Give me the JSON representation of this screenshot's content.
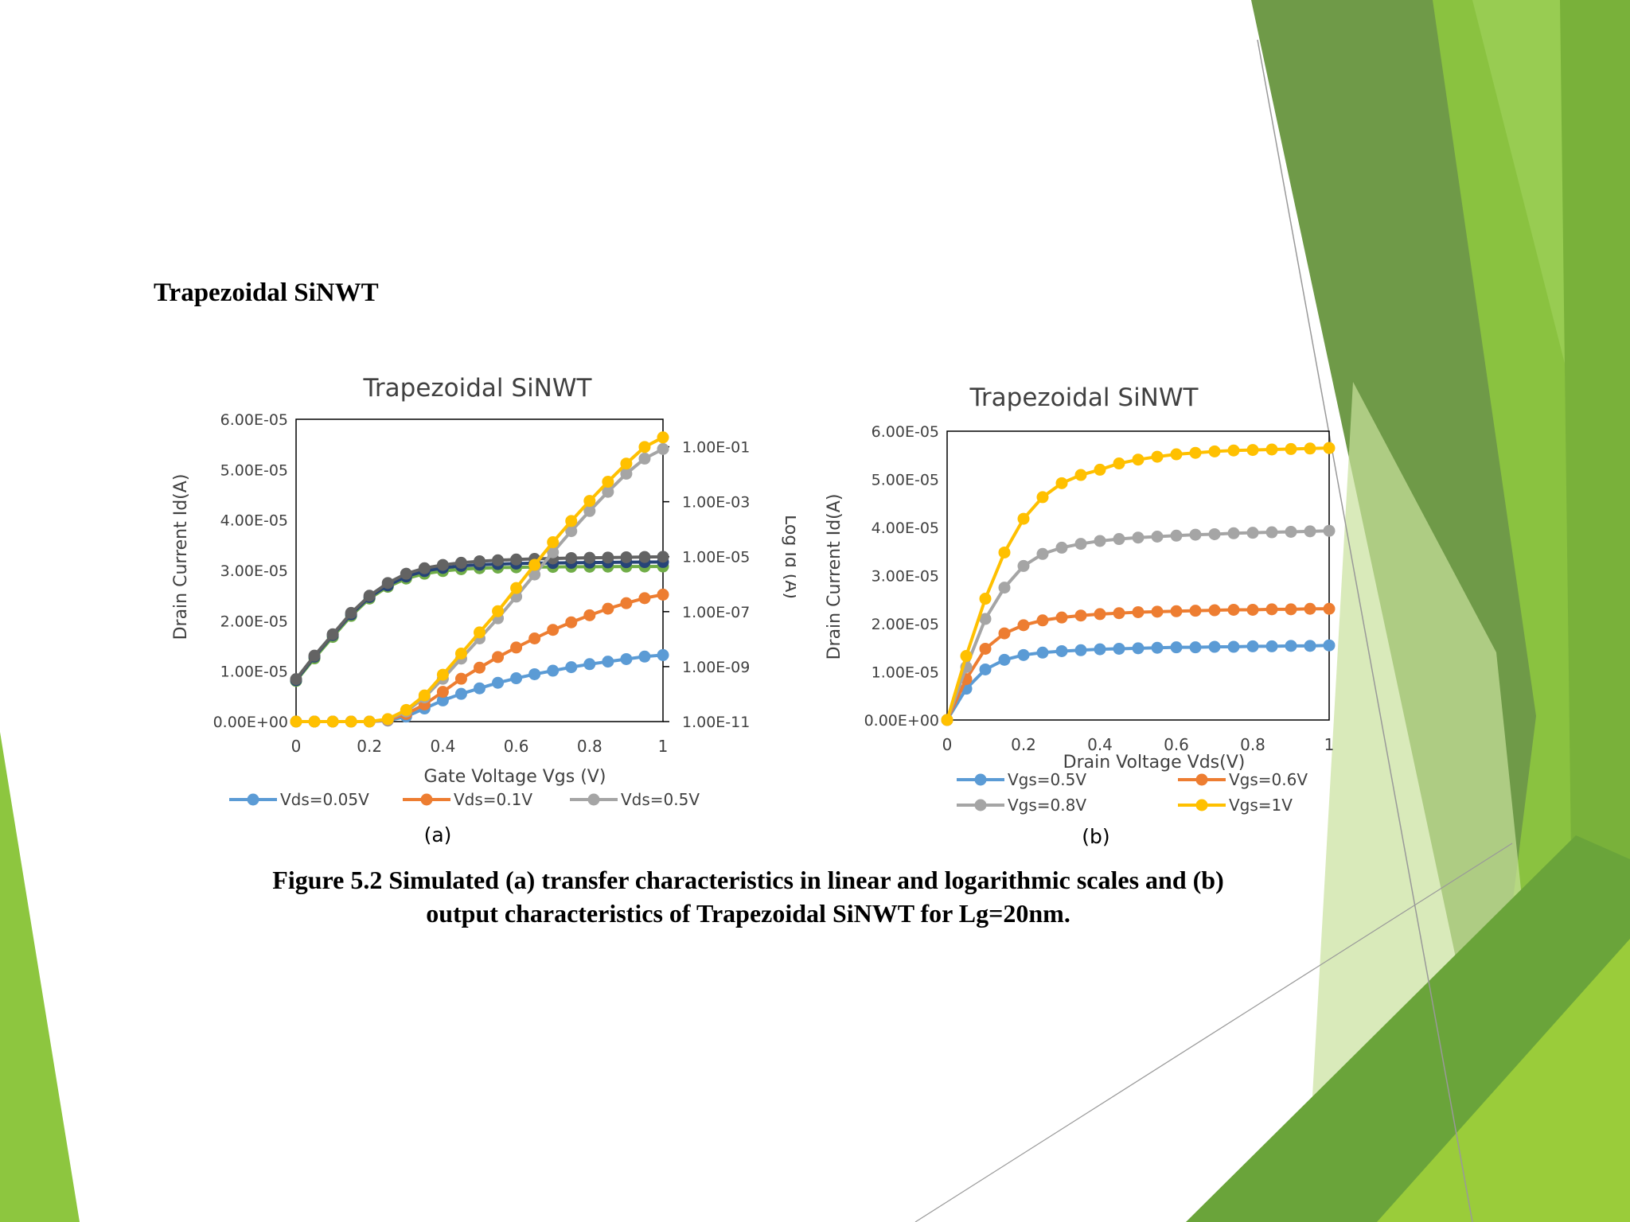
{
  "slide": {
    "heading": "Trapezoidal SiNWT",
    "caption_line1": "Figure 5.2 Simulated (a) transfer characteristics in linear and logarithmic scales and (b)",
    "caption_line2": "output characteristics of Trapezoidal SiNWT for Lg=20nm.",
    "theme_colors": {
      "green_dark": "#6b9a4a",
      "green_light": "#8dc63f",
      "green_pale": "#d8eab8"
    }
  },
  "chart_data": [
    {
      "type": "line",
      "panel_label": "(a)",
      "title": "Trapezoidal SiNWT",
      "xlabel": "Gate Voltage Vgs (V)",
      "ylabel": "Drain Current Id(A)",
      "y2label": "Log Id (A)",
      "xlim": [
        0,
        1
      ],
      "ylim": [
        0,
        6e-05
      ],
      "y2_log_range": [
        1e-11,
        1
      ],
      "xticks": [
        "0",
        "0.2",
        "0.4",
        "0.6",
        "0.8",
        "1"
      ],
      "yticks": [
        "0.00E+00",
        "1.00E-05",
        "2.00E-05",
        "3.00E-05",
        "4.00E-05",
        "5.00E-05",
        "6.00E-05"
      ],
      "y2ticks": [
        "1.00E-11",
        "1.00E-09",
        "1.00E-07",
        "1.00E-05",
        "1.00E-03",
        "1.00E-01"
      ],
      "legend_position": "bottom",
      "x": [
        0,
        0.05,
        0.1,
        0.15,
        0.2,
        0.25,
        0.3,
        0.35,
        0.4,
        0.45,
        0.5,
        0.55,
        0.6,
        0.65,
        0.7,
        0.75,
        0.8,
        0.85,
        0.9,
        0.95,
        1.0
      ],
      "series": [
        {
          "name": "Vds=0.05V",
          "color": "#5b9bd5",
          "axis": "left",
          "values": [
            0,
            0,
            0,
            0,
            0,
            2e-07,
            1e-06,
            2.6e-06,
            4.2e-06,
            5.5e-06,
            6.6e-06,
            7.7e-06,
            8.6e-06,
            9.4e-06,
            1.01e-05,
            1.08e-05,
            1.14e-05,
            1.19e-05,
            1.24e-05,
            1.29e-05,
            1.32e-05
          ]
        },
        {
          "name": "Vds=0.1V",
          "color": "#ed7d31",
          "axis": "left",
          "values": [
            0,
            0,
            0,
            0,
            0,
            3e-07,
            1.5e-06,
            3.4e-06,
            5.9e-06,
            8.5e-06,
            1.07e-05,
            1.28e-05,
            1.47e-05,
            1.65e-05,
            1.82e-05,
            1.97e-05,
            2.11e-05,
            2.24e-05,
            2.35e-05,
            2.45e-05,
            2.52e-05
          ]
        },
        {
          "name": "Vds=0.5V",
          "color": "#a5a5a5",
          "axis": "left",
          "values": [
            0,
            0,
            0,
            0,
            0,
            4e-07,
            2e-06,
            4.8e-06,
            8.5e-06,
            1.25e-05,
            1.65e-05,
            2.05e-05,
            2.48e-05,
            2.92e-05,
            3.36e-05,
            3.78e-05,
            4.18e-05,
            4.56e-05,
            4.92e-05,
            5.22e-05,
            5.41e-05
          ]
        },
        {
          "color": "#ffc000",
          "axis": "left",
          "values": [
            0,
            0,
            0,
            0,
            0,
            5e-07,
            2.3e-06,
            5.2e-06,
            9.3e-06,
            1.35e-05,
            1.77e-05,
            2.19e-05,
            2.65e-05,
            3.11e-05,
            3.56e-05,
            3.98e-05,
            4.38e-05,
            4.76e-05,
            5.12e-05,
            5.45e-05,
            5.64e-05
          ]
        },
        {
          "color": "#70ad47",
          "axis": "right",
          "values": [
            3e-10,
            2e-09,
            1.2e-08,
            7e-08,
            3e-07,
            8e-07,
            1.6e-06,
            2.4e-06,
            3e-06,
            3.5e-06,
            3.8e-06,
            4e-06,
            4.1e-06,
            4.2e-06,
            4.25e-06,
            4.3e-06,
            4.32e-06,
            4.35e-06,
            4.37e-06,
            4.38e-06,
            4.4e-06
          ]
        },
        {
          "color": "#264478",
          "axis": "right",
          "values": [
            3.2e-10,
            2.3e-09,
            1.4e-08,
            8e-08,
            3.4e-07,
            9e-07,
            1.9e-06,
            3e-06,
            3.9e-06,
            4.6e-06,
            5.1e-06,
            5.4e-06,
            5.6e-06,
            5.8e-06,
            5.9e-06,
            6e-06,
            6.1e-06,
            6.2e-06,
            6.3e-06,
            6.35e-06,
            6.4e-06
          ]
        },
        {
          "color": "#636363",
          "axis": "right",
          "values": [
            3.5e-10,
            2.5e-09,
            1.5e-08,
            9e-08,
            3.8e-07,
            1.1e-06,
            2.4e-06,
            3.8e-06,
            5e-06,
            6e-06,
            6.8e-06,
            7.4e-06,
            7.9e-06,
            8.3e-06,
            8.6e-06,
            8.9e-06,
            9.1e-06,
            9.3e-06,
            9.5e-06,
            9.7e-06,
            9.9e-06
          ]
        }
      ]
    },
    {
      "type": "line",
      "panel_label": "(b)",
      "title": "Trapezoidal SiNWT",
      "xlabel": "Drain Voltage Vds(V)",
      "ylabel": "Drain Current Id(A)",
      "xlim": [
        0,
        1
      ],
      "ylim": [
        0,
        6e-05
      ],
      "xticks": [
        "0",
        "0.2",
        "0.4",
        "0.6",
        "0.8",
        "1"
      ],
      "yticks": [
        "0.00E+00",
        "1.00E-05",
        "2.00E-05",
        "3.00E-05",
        "4.00E-05",
        "5.00E-05",
        "6.00E-05"
      ],
      "legend_position": "bottom",
      "x": [
        0,
        0.05,
        0.1,
        0.15,
        0.2,
        0.25,
        0.3,
        0.35,
        0.4,
        0.45,
        0.5,
        0.55,
        0.6,
        0.65,
        0.7,
        0.75,
        0.8,
        0.85,
        0.9,
        0.95,
        1.0
      ],
      "series": [
        {
          "name": "Vgs=0.5V",
          "color": "#5b9bd5",
          "values": [
            0,
            6.5e-06,
            1.05e-05,
            1.25e-05,
            1.35e-05,
            1.4e-05,
            1.43e-05,
            1.45e-05,
            1.47e-05,
            1.48e-05,
            1.49e-05,
            1.5e-05,
            1.51e-05,
            1.51e-05,
            1.52e-05,
            1.52e-05,
            1.53e-05,
            1.53e-05,
            1.54e-05,
            1.54e-05,
            1.55e-05
          ]
        },
        {
          "name": "Vgs=0.6V",
          "color": "#ed7d31",
          "values": [
            0,
            8.5e-06,
            1.48e-05,
            1.8e-05,
            1.97e-05,
            2.07e-05,
            2.13e-05,
            2.17e-05,
            2.2e-05,
            2.22e-05,
            2.24e-05,
            2.25e-05,
            2.26e-05,
            2.27e-05,
            2.28e-05,
            2.29e-05,
            2.29e-05,
            2.3e-05,
            2.3e-05,
            2.31e-05,
            2.31e-05
          ]
        },
        {
          "name": "Vgs=0.8V",
          "color": "#a5a5a5",
          "values": [
            0,
            1.1e-05,
            2.1e-05,
            2.75e-05,
            3.2e-05,
            3.45e-05,
            3.58e-05,
            3.66e-05,
            3.72e-05,
            3.76e-05,
            3.79e-05,
            3.81e-05,
            3.83e-05,
            3.85e-05,
            3.86e-05,
            3.88e-05,
            3.89e-05,
            3.9e-05,
            3.91e-05,
            3.92e-05,
            3.93e-05
          ]
        },
        {
          "name": "Vgs=1V",
          "color": "#ffc000",
          "values": [
            0,
            1.33e-05,
            2.52e-05,
            3.48e-05,
            4.18e-05,
            4.63e-05,
            4.92e-05,
            5.09e-05,
            5.2e-05,
            5.33e-05,
            5.41e-05,
            5.47e-05,
            5.52e-05,
            5.55e-05,
            5.58e-05,
            5.6e-05,
            5.61e-05,
            5.62e-05,
            5.63e-05,
            5.64e-05,
            5.65e-05
          ]
        }
      ]
    }
  ]
}
